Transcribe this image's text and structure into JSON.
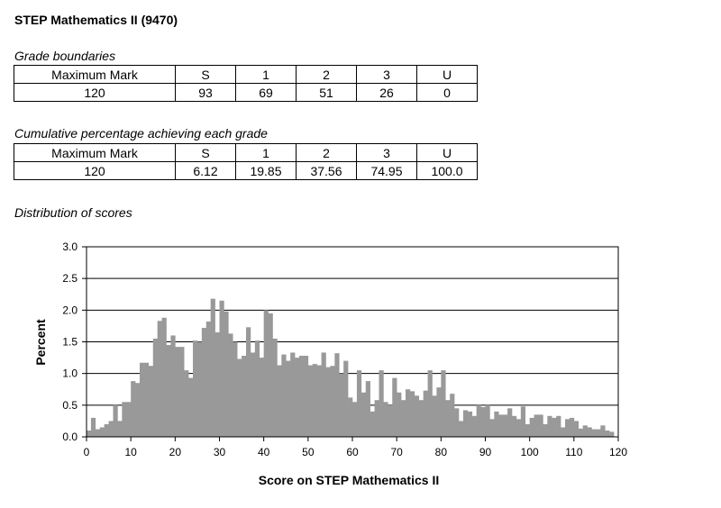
{
  "title": "STEP Mathematics II (9470)",
  "grade_boundaries": {
    "caption": "Grade boundaries",
    "headers": [
      "Maximum Mark",
      "S",
      "1",
      "2",
      "3",
      "U"
    ],
    "values": [
      "120",
      "93",
      "69",
      "51",
      "26",
      "0"
    ]
  },
  "cumulative": {
    "caption": "Cumulative percentage achieving each grade",
    "headers": [
      "Maximum Mark",
      "S",
      "1",
      "2",
      "3",
      "U"
    ],
    "values": [
      "120",
      "6.12",
      "19.85",
      "37.56",
      "74.95",
      "100.0"
    ]
  },
  "distribution_caption": "Distribution of scores",
  "chart_data": {
    "type": "bar",
    "xlabel": "Score on STEP Mathematics II",
    "ylabel": "Percent",
    "xlim": [
      0,
      120
    ],
    "ylim": [
      0,
      3.0
    ],
    "x_ticks": [
      "0",
      "10",
      "20",
      "30",
      "40",
      "50",
      "60",
      "70",
      "80",
      "90",
      "100",
      "110",
      "120"
    ],
    "y_ticks": [
      "0.0",
      "0.5",
      "1.0",
      "1.5",
      "2.0",
      "2.5",
      "3.0"
    ],
    "grid": true,
    "bar_color": "#999999",
    "x": [
      0,
      1,
      2,
      3,
      4,
      5,
      6,
      7,
      8,
      9,
      10,
      11,
      12,
      13,
      14,
      15,
      16,
      17,
      18,
      19,
      20,
      21,
      22,
      23,
      24,
      25,
      26,
      27,
      28,
      29,
      30,
      31,
      32,
      33,
      34,
      35,
      36,
      37,
      38,
      39,
      40,
      41,
      42,
      43,
      44,
      45,
      46,
      47,
      48,
      49,
      50,
      51,
      52,
      53,
      54,
      55,
      56,
      57,
      58,
      59,
      60,
      61,
      62,
      63,
      64,
      65,
      66,
      67,
      68,
      69,
      70,
      71,
      72,
      73,
      74,
      75,
      76,
      77,
      78,
      79,
      80,
      81,
      82,
      83,
      84,
      85,
      86,
      87,
      88,
      89,
      90,
      91,
      92,
      93,
      94,
      95,
      96,
      97,
      98,
      99,
      100,
      101,
      102,
      103,
      104,
      105,
      106,
      107,
      108,
      109,
      110,
      111,
      112,
      113,
      114,
      115,
      116,
      117,
      118
    ],
    "values": [
      0.1,
      0.3,
      0.12,
      0.15,
      0.2,
      0.25,
      0.5,
      0.25,
      0.55,
      0.55,
      0.88,
      0.85,
      1.17,
      1.17,
      1.12,
      1.55,
      1.83,
      1.88,
      1.45,
      1.6,
      1.42,
      1.42,
      1.05,
      0.93,
      1.52,
      1.5,
      1.72,
      1.82,
      2.18,
      1.65,
      2.15,
      1.98,
      1.63,
      1.5,
      1.23,
      1.28,
      1.73,
      1.33,
      1.52,
      1.25,
      2.0,
      1.95,
      1.55,
      1.13,
      1.3,
      1.2,
      1.33,
      1.25,
      1.28,
      1.28,
      1.13,
      1.15,
      1.13,
      1.33,
      1.1,
      1.12,
      1.32,
      1.0,
      1.2,
      0.62,
      0.55,
      1.05,
      0.7,
      0.88,
      0.4,
      0.58,
      1.05,
      0.55,
      0.5,
      0.93,
      0.7,
      0.58,
      0.75,
      0.72,
      0.65,
      0.58,
      0.73,
      1.05,
      0.65,
      0.78,
      1.05,
      0.58,
      0.68,
      0.45,
      0.25,
      0.42,
      0.4,
      0.33,
      0.5,
      0.47,
      0.5,
      0.28,
      0.4,
      0.35,
      0.35,
      0.45,
      0.33,
      0.28,
      0.48,
      0.2,
      0.3,
      0.35,
      0.35,
      0.2,
      0.33,
      0.3,
      0.33,
      0.15,
      0.28,
      0.3,
      0.25,
      0.13,
      0.18,
      0.15,
      0.12,
      0.12,
      0.18,
      0.1,
      0.08
    ]
  }
}
